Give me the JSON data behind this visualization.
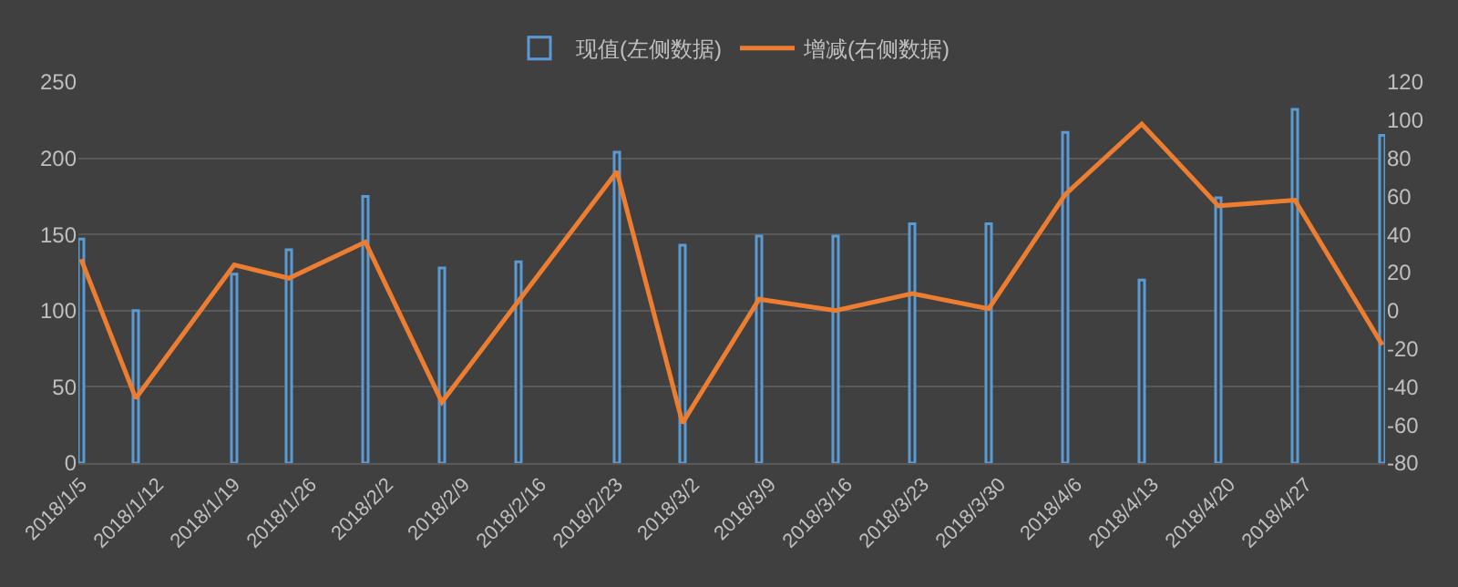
{
  "chart_data": {
    "type": "bar",
    "x": [
      "2018-01-05",
      "2018-01-10",
      "2018-01-19",
      "2018-01-24",
      "2018-01-31",
      "2018-02-07",
      "2018-02-14",
      "2018-02-23",
      "2018-03-01",
      "2018-03-08",
      "2018-03-15",
      "2018-03-22",
      "2018-03-29",
      "2018-04-05",
      "2018-04-12",
      "2018-04-19",
      "2018-04-26",
      "2018-05-04"
    ],
    "series": [
      {
        "name": "现值(左侧数据)",
        "color": "#5b9bd5",
        "values": [
          147,
          100,
          124,
          140,
          175,
          128,
          132,
          204,
          143,
          149,
          149,
          157,
          157,
          217,
          120,
          174,
          232,
          215
        ]
      },
      {
        "name": "增减(右侧数据)",
        "type": "line",
        "axis": "y2",
        "color": "#ed7d31",
        "values": [
          27,
          -46,
          24,
          17,
          36,
          -48,
          5,
          73,
          -59,
          6,
          0,
          9,
          1,
          61,
          98,
          55,
          58,
          -18
        ]
      }
    ],
    "xlim": [
      "2018-01-04T18:00",
      "2018-05-04T06:00"
    ],
    "xticks": [
      {
        "value": "2018-01-05",
        "label": "2018/1/5"
      },
      {
        "value": "2018-01-12",
        "label": "2018/1/12"
      },
      {
        "value": "2018-01-19",
        "label": "2018/1/19"
      },
      {
        "value": "2018-01-26",
        "label": "2018/1/26"
      },
      {
        "value": "2018-02-02",
        "label": "2018/2/2"
      },
      {
        "value": "2018-02-09",
        "label": "2018/2/9"
      },
      {
        "value": "2018-02-16",
        "label": "2018/2/16"
      },
      {
        "value": "2018-02-23",
        "label": "2018/2/23"
      },
      {
        "value": "2018-03-02",
        "label": "2018/3/2"
      },
      {
        "value": "2018-03-09",
        "label": "2018/3/9"
      },
      {
        "value": "2018-03-16",
        "label": "2018/3/16"
      },
      {
        "value": "2018-03-23",
        "label": "2018/3/23"
      },
      {
        "value": "2018-03-30",
        "label": "2018/3/30"
      },
      {
        "value": "2018-04-06",
        "label": "2018/4/6"
      },
      {
        "value": "2018-04-13",
        "label": "2018/4/13"
      },
      {
        "value": "2018-04-20",
        "label": "2018/4/20"
      },
      {
        "value": "2018-04-27",
        "label": "2018/4/27"
      }
    ],
    "ylim": [
      0,
      250
    ],
    "yticks": [
      0,
      50,
      100,
      150,
      200,
      250
    ],
    "y2lim": [
      -80,
      120
    ],
    "y2ticks": [
      -80,
      -60,
      -40,
      -20,
      0,
      20,
      40,
      60,
      80,
      100,
      120
    ],
    "grid": "y",
    "legend": "top",
    "marker": "none",
    "line_style": "solid"
  }
}
